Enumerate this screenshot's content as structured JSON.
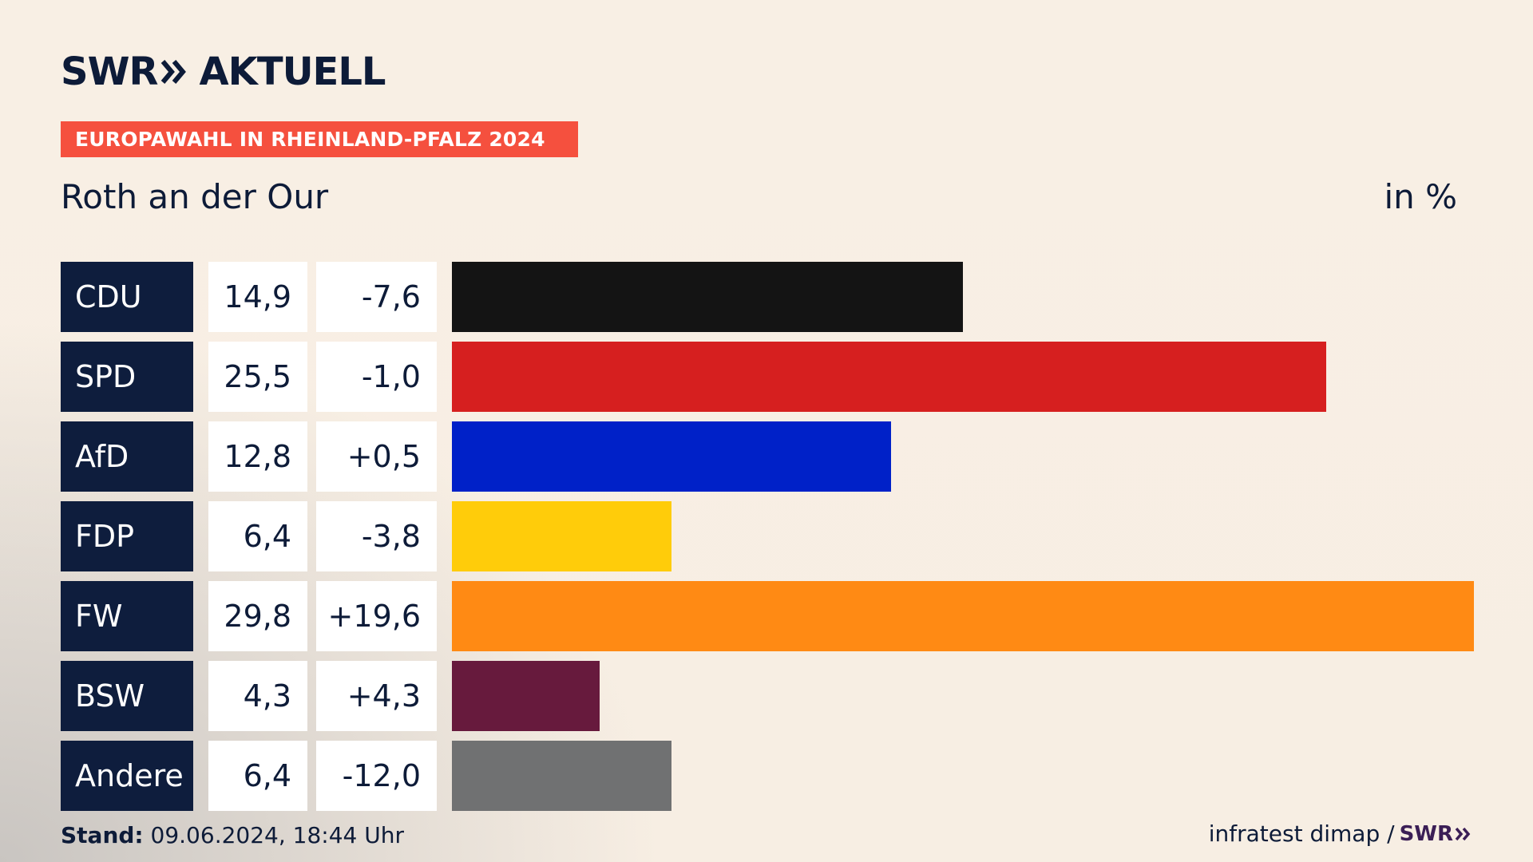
{
  "brand": {
    "logo_left": "SWR",
    "logo_right": "AKTUELL"
  },
  "header": {
    "badge": "EUROPAWAHL IN RHEINLAND-PFALZ 2024",
    "subtitle": "Roth an der Our",
    "unit": "in %"
  },
  "chart_data": {
    "type": "bar",
    "orientation": "horizontal",
    "categories": [
      "CDU",
      "SPD",
      "AfD",
      "FDP",
      "FW",
      "BSW",
      "Andere"
    ],
    "series": [
      {
        "name": "",
        "values": [
          14.9,
          25.5,
          12.8,
          6.4,
          29.8,
          4.3,
          6.4
        ]
      }
    ],
    "value_labels": [
      "14,9",
      "25,5",
      "12,8",
      "6,4",
      "29,8",
      "4,3",
      "6,4"
    ],
    "diff_labels": [
      "-7,6",
      "-1,0",
      "+0,5",
      "-3,8",
      "+19,6",
      "+4,3",
      "-12,0"
    ],
    "diffs": [
      -7.6,
      -1.0,
      0.5,
      -3.8,
      19.6,
      4.3,
      -12.0
    ],
    "colors": [
      "#141414",
      "#d61f1f",
      "#0021c8",
      "#ffcc0a",
      "#ff8a14",
      "#671a3d",
      "#707172"
    ],
    "xlim": [
      0,
      29.8
    ]
  },
  "footer": {
    "stand_label": "Stand:",
    "stand_value": "09.06.2024, 18:44 Uhr",
    "source": "infratest dimap /",
    "source_logo": "SWR"
  }
}
